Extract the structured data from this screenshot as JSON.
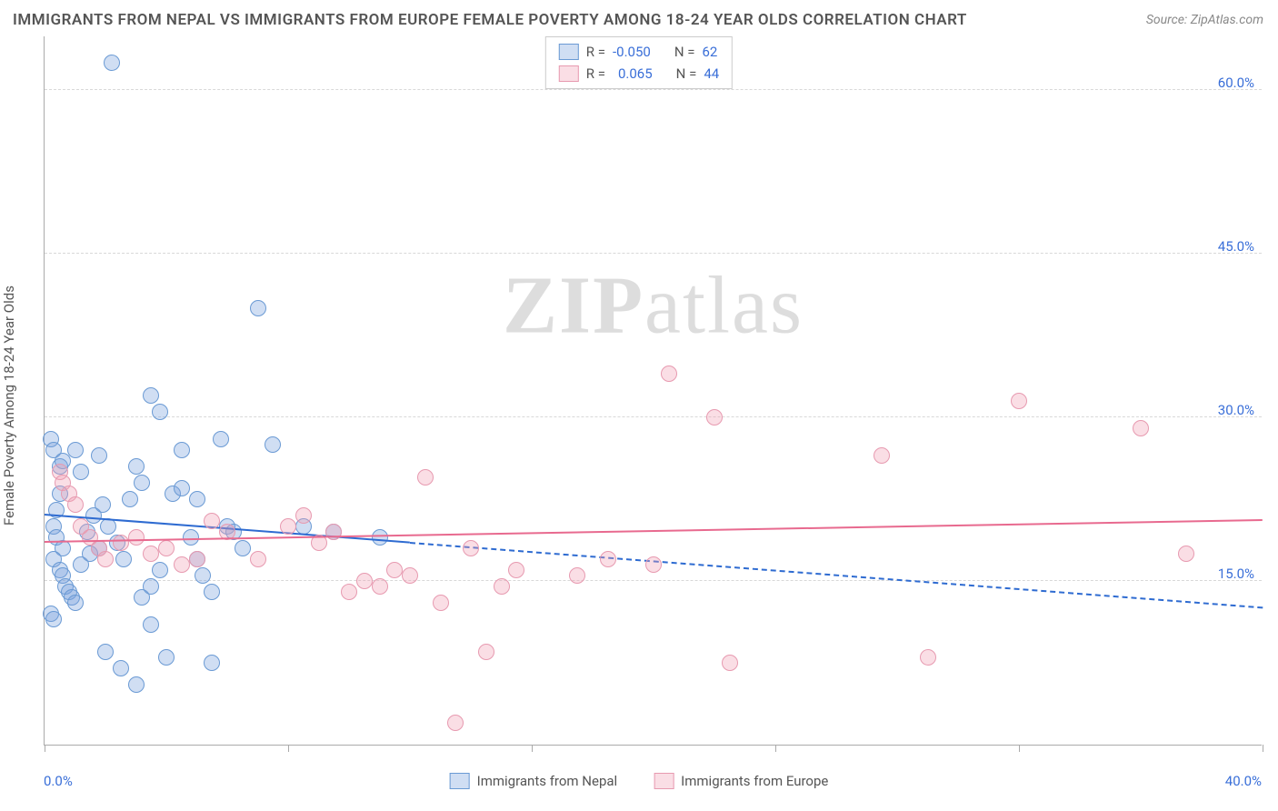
{
  "title": "IMMIGRANTS FROM NEPAL VS IMMIGRANTS FROM EUROPE FEMALE POVERTY AMONG 18-24 YEAR OLDS CORRELATION CHART",
  "source_label": "Source: ZipAtlas.com",
  "watermark_a": "ZIP",
  "watermark_b": "atlas",
  "y_axis_title": "Female Poverty Among 18-24 Year Olds",
  "chart": {
    "type": "scatter",
    "x_domain": [
      0,
      40
    ],
    "y_domain": [
      0,
      65
    ],
    "x_tick_positions": [
      0,
      8,
      16,
      24,
      32,
      40
    ],
    "x_label_min": "0.0%",
    "x_label_max": "40.0%",
    "y_gridlines": [
      15,
      30,
      45,
      60
    ],
    "y_gridline_labels": [
      "15.0%",
      "30.0%",
      "45.0%",
      "60.0%"
    ],
    "background_color": "#ffffff",
    "grid_color": "#d8d8d8",
    "axis_color": "#aaaaaa",
    "label_color": "#3a6fd8",
    "title_color": "#555555",
    "series": [
      {
        "name": "Immigrants from Nepal",
        "fill": "rgba(120,160,220,0.35)",
        "stroke": "#6a9ad4",
        "trend_color": "#2e6bd1",
        "trend": {
          "y_at_x0": 21.0,
          "y_at_xmax": 12.5,
          "solid_until_x": 12
        },
        "R_label": "R =",
        "R_value": "-0.050",
        "N_label": "N =",
        "N_value": "62",
        "points": [
          [
            2.2,
            62.5
          ],
          [
            0.2,
            28.0
          ],
          [
            0.3,
            27.0
          ],
          [
            0.5,
            25.5
          ],
          [
            0.5,
            23.0
          ],
          [
            0.4,
            21.5
          ],
          [
            0.3,
            20.0
          ],
          [
            0.4,
            19.0
          ],
          [
            0.6,
            18.0
          ],
          [
            0.3,
            17.0
          ],
          [
            0.5,
            16.0
          ],
          [
            0.6,
            15.5
          ],
          [
            0.7,
            14.5
          ],
          [
            0.8,
            14.0
          ],
          [
            0.9,
            13.5
          ],
          [
            1.0,
            13.0
          ],
          [
            0.2,
            12.0
          ],
          [
            0.3,
            11.5
          ],
          [
            1.2,
            16.5
          ],
          [
            1.5,
            17.5
          ],
          [
            1.8,
            18.0
          ],
          [
            1.4,
            19.5
          ],
          [
            1.6,
            21.0
          ],
          [
            1.9,
            22.0
          ],
          [
            2.1,
            20.0
          ],
          [
            2.4,
            18.5
          ],
          [
            2.6,
            17.0
          ],
          [
            2.8,
            22.5
          ],
          [
            3.0,
            25.5
          ],
          [
            3.2,
            24.0
          ],
          [
            3.5,
            32.0
          ],
          [
            3.8,
            30.5
          ],
          [
            3.2,
            13.5
          ],
          [
            3.5,
            14.5
          ],
          [
            3.8,
            16.0
          ],
          [
            4.2,
            23.0
          ],
          [
            4.5,
            27.0
          ],
          [
            4.8,
            19.0
          ],
          [
            5.0,
            17.0
          ],
          [
            5.2,
            15.5
          ],
          [
            5.5,
            14.0
          ],
          [
            5.8,
            28.0
          ],
          [
            6.0,
            20.0
          ],
          [
            6.5,
            18.0
          ],
          [
            7.0,
            40.0
          ],
          [
            7.5,
            27.5
          ],
          [
            2.0,
            8.5
          ],
          [
            2.5,
            7.0
          ],
          [
            3.0,
            5.5
          ],
          [
            3.5,
            11.0
          ],
          [
            4.0,
            8.0
          ],
          [
            5.5,
            7.5
          ],
          [
            1.0,
            27.0
          ],
          [
            1.2,
            25.0
          ],
          [
            4.5,
            23.5
          ],
          [
            5.0,
            22.5
          ],
          [
            6.2,
            19.5
          ],
          [
            8.5,
            20.0
          ],
          [
            9.5,
            19.5
          ],
          [
            11.0,
            19.0
          ],
          [
            0.6,
            26.0
          ],
          [
            1.8,
            26.5
          ]
        ]
      },
      {
        "name": "Immigrants from Europe",
        "fill": "rgba(240,160,180,0.35)",
        "stroke": "#e79ab0",
        "trend_color": "#e86a8f",
        "trend": {
          "y_at_x0": 18.5,
          "y_at_xmax": 20.5,
          "solid_until_x": 40
        },
        "R_label": "R =",
        "R_value": "0.065",
        "N_label": "N =",
        "N_value": "44",
        "points": [
          [
            0.5,
            25.0
          ],
          [
            0.6,
            24.0
          ],
          [
            0.8,
            23.0
          ],
          [
            1.0,
            22.0
          ],
          [
            1.2,
            20.0
          ],
          [
            1.5,
            19.0
          ],
          [
            1.8,
            18.0
          ],
          [
            2.0,
            17.0
          ],
          [
            2.5,
            18.5
          ],
          [
            3.0,
            19.0
          ],
          [
            3.5,
            17.5
          ],
          [
            4.0,
            18.0
          ],
          [
            4.5,
            16.5
          ],
          [
            5.0,
            17.0
          ],
          [
            5.5,
            20.5
          ],
          [
            6.0,
            19.5
          ],
          [
            7.0,
            17.0
          ],
          [
            8.0,
            20.0
          ],
          [
            8.5,
            21.0
          ],
          [
            9.0,
            18.5
          ],
          [
            9.5,
            19.5
          ],
          [
            10.0,
            14.0
          ],
          [
            10.5,
            15.0
          ],
          [
            11.0,
            14.5
          ],
          [
            11.5,
            16.0
          ],
          [
            12.0,
            15.5
          ],
          [
            12.5,
            24.5
          ],
          [
            13.0,
            13.0
          ],
          [
            14.0,
            18.0
          ],
          [
            15.0,
            14.5
          ],
          [
            15.5,
            16.0
          ],
          [
            17.5,
            15.5
          ],
          [
            18.5,
            17.0
          ],
          [
            20.5,
            34.0
          ],
          [
            20.0,
            16.5
          ],
          [
            22.0,
            30.0
          ],
          [
            22.5,
            7.5
          ],
          [
            27.5,
            26.5
          ],
          [
            29.0,
            8.0
          ],
          [
            32.0,
            31.5
          ],
          [
            36.0,
            29.0
          ],
          [
            37.5,
            17.5
          ],
          [
            13.5,
            2.0
          ],
          [
            14.5,
            8.5
          ]
        ]
      }
    ]
  }
}
